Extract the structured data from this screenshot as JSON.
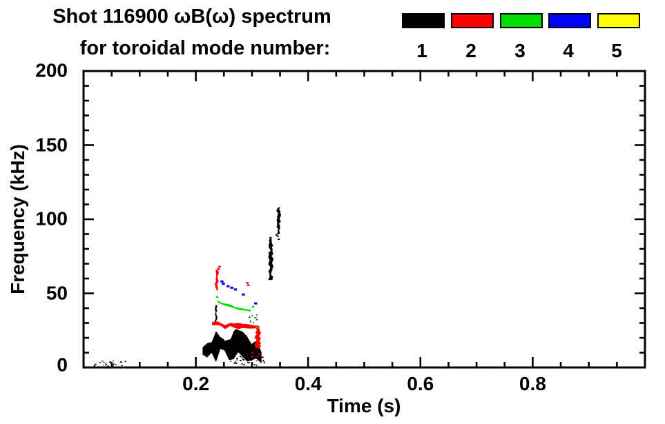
{
  "figure": {
    "title_line1": "Shot 116900 ωB(ω) spectrum",
    "title_line2": "for toroidal mode number:",
    "background": "#ffffff"
  },
  "legend": {
    "modes": [
      {
        "label": "1",
        "color": "#000000"
      },
      {
        "label": "2",
        "color": "#ff0000"
      },
      {
        "label": "3",
        "color": "#00dd00"
      },
      {
        "label": "4",
        "color": "#0000ff"
      },
      {
        "label": "5",
        "color": "#ffff00"
      }
    ]
  },
  "chart_data": {
    "type": "scatter",
    "title": "Shot 116900 ωB(ω) spectrum for toroidal mode number: 1 2 3 4 5",
    "xlabel": "Time (s)",
    "ylabel": "Frequency (kHz)",
    "xlim": [
      0.0,
      1.0
    ],
    "ylim": [
      0,
      200
    ],
    "x_major_ticks": [
      0.2,
      0.4,
      0.6,
      0.8
    ],
    "x_tick_labels": [
      "0.2",
      "0.4",
      "0.6",
      "0.8"
    ],
    "x_minor_tick_step": 0.05,
    "y_major_ticks": [
      0,
      50,
      100,
      150,
      200
    ],
    "y_tick_labels": [
      "0",
      "50",
      "100",
      "150",
      "200"
    ],
    "y_minor_tick_step": 10,
    "grid": false,
    "legend_position": "top-right-above-frame",
    "series": [
      {
        "name": "1",
        "color": "#000000",
        "features": [
          {
            "kind": "dots",
            "t": [
              0.018,
              0.078
            ],
            "f": [
              0.5,
              4.5
            ],
            "count": 24,
            "size": [
              1,
              2.4
            ]
          },
          {
            "kind": "band",
            "rough": 1,
            "points": [
              [
                0.212,
                11,
                4
              ],
              [
                0.222,
                13,
                6.5
              ],
              [
                0.235,
                14,
                9
              ],
              [
                0.25,
                16,
                10
              ],
              [
                0.262,
                13,
                7.5
              ],
              [
                0.272,
                15,
                9.5
              ],
              [
                0.285,
                14,
                8.5
              ],
              [
                0.298,
                12.5,
                7
              ],
              [
                0.308,
                10.5,
                6
              ],
              [
                0.317,
                6.5,
                5
              ]
            ]
          },
          {
            "kind": "dots",
            "t": [
              0.262,
              0.322
            ],
            "f": [
              1,
              7.5
            ],
            "count": 30,
            "size": [
              1,
              2.6
            ]
          },
          {
            "kind": "streak",
            "t": 0.2355,
            "f": [
              31,
              42
            ],
            "w": 2
          },
          {
            "kind": "dots",
            "t": [
              0.295,
              0.312
            ],
            "f": [
              30,
              37
            ],
            "count": 7,
            "size": [
              1,
              2.2
            ]
          },
          {
            "kind": "streak",
            "t": 0.3335,
            "f": [
              59,
              88
            ],
            "w": 4.5
          },
          {
            "kind": "streak",
            "t": 0.3475,
            "f": [
              90,
              108
            ],
            "w": 4
          },
          {
            "kind": "points",
            "pts": [
              [
                0.344,
                89.5
              ],
              [
                0.346,
                88.5
              ],
              [
                0.3475,
                86.5
              ]
            ],
            "w": 3,
            "h": 2
          }
        ]
      },
      {
        "name": "2",
        "color": "#ff0000",
        "features": [
          {
            "kind": "band",
            "rough": 0.8,
            "points": [
              [
                0.229,
                30,
                1.6
              ],
              [
                0.24,
                29.5,
                2.6
              ],
              [
                0.252,
                28,
                2.2
              ],
              [
                0.263,
                29,
                2.6
              ],
              [
                0.276,
                28,
                2.2
              ],
              [
                0.29,
                28.5,
                2.2
              ],
              [
                0.3,
                28,
                2
              ],
              [
                0.313,
                27,
                2.2
              ]
            ]
          },
          {
            "kind": "streak",
            "t": 0.2375,
            "f": [
              52,
              66
            ],
            "w": 3
          },
          {
            "kind": "points",
            "pts": [
              [
                0.2405,
                66.5
              ],
              [
                0.2425,
                68
              ],
              [
                0.291,
                57
              ],
              [
                0.294,
                55.5
              ]
            ],
            "w": 3.5,
            "h": 2.5
          },
          {
            "kind": "streak",
            "t": 0.3105,
            "f": [
              13,
              26
            ],
            "w": 6
          },
          {
            "kind": "dots",
            "t": [
              0.3,
              0.316
            ],
            "f": [
              6,
              11
            ],
            "count": 5,
            "size": [
              1.5,
              2.6
            ]
          }
        ]
      },
      {
        "name": "3",
        "color": "#00dd00",
        "features": [
          {
            "kind": "band",
            "rough": 0.7,
            "points": [
              [
                0.2385,
                44.8,
                1.4
              ],
              [
                0.247,
                43,
                1.7
              ],
              [
                0.257,
                42,
                1.4
              ],
              [
                0.267,
                40.5,
                1.4
              ],
              [
                0.277,
                39.5,
                1.2
              ],
              [
                0.287,
                38.8,
                1.2
              ],
              [
                0.298,
                38.2,
                1.1
              ]
            ]
          },
          {
            "kind": "points",
            "pts": [
              [
                0.2375,
                47.5
              ],
              [
                0.302,
                41
              ],
              [
                0.306,
                33.5
              ],
              [
                0.309,
                27
              ]
            ],
            "w": 3.5,
            "h": 2.5
          }
        ]
      },
      {
        "name": "4",
        "color": "#0000ff",
        "features": [
          {
            "kind": "points",
            "pts": [
              [
                0.2465,
                58
              ],
              [
                0.2495,
                56.5
              ],
              [
                0.258,
                54.8
              ],
              [
                0.2635,
                53.8
              ],
              [
                0.2705,
                52.6
              ],
              [
                0.284,
                49.2
              ],
              [
                0.307,
                43.2
              ]
            ],
            "w": 4.5,
            "h": 3
          }
        ]
      },
      {
        "name": "5",
        "color": "#ffff00",
        "features": []
      }
    ]
  }
}
